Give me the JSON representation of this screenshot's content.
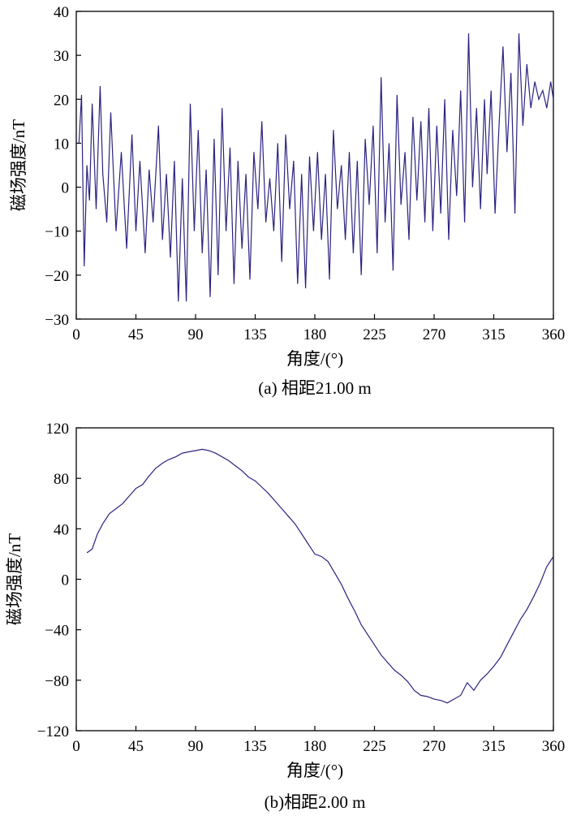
{
  "chart_data": [
    {
      "type": "line",
      "caption": "(a) 相距21.00 m",
      "xlabel": "角度/(°)",
      "ylabel": "磁场强度/nT",
      "xlim": [
        0,
        360
      ],
      "ylim": [
        -30,
        40
      ],
      "xticks": [
        0,
        45,
        90,
        135,
        180,
        225,
        270,
        315,
        360
      ],
      "yticks": [
        -30,
        -20,
        -10,
        0,
        10,
        20,
        30,
        40
      ],
      "grid": false,
      "color": "#2b2380",
      "series": [
        {
          "x": [
            2,
            4,
            5,
            6,
            8,
            10,
            12,
            15,
            18,
            20,
            23,
            26,
            30,
            34,
            38,
            42,
            45,
            48,
            52,
            55,
            58,
            62,
            65,
            68,
            71,
            74,
            77,
            80,
            83,
            86,
            89,
            92,
            95,
            98,
            101,
            104,
            107,
            110,
            113,
            116,
            119,
            122,
            125,
            128,
            131,
            134,
            137,
            140,
            143,
            146,
            149,
            152,
            155,
            158,
            161,
            164,
            167,
            170,
            173,
            176,
            179,
            182,
            185,
            188,
            191,
            194,
            197,
            200,
            203,
            206,
            209,
            212,
            215,
            218,
            221,
            224,
            227,
            230,
            233,
            236,
            239,
            242,
            245,
            248,
            251,
            254,
            257,
            260,
            263,
            266,
            269,
            272,
            275,
            278,
            281,
            284,
            287,
            290,
            293,
            296,
            299,
            302,
            305,
            308,
            310,
            313,
            316,
            319,
            322,
            325,
            328,
            331,
            334,
            337,
            340,
            343,
            346,
            349,
            352,
            355,
            358,
            360
          ],
          "y": [
            10,
            21,
            0,
            -18,
            5,
            -3,
            19,
            -5,
            23,
            3,
            -8,
            17,
            -10,
            8,
            -14,
            12,
            -10,
            6,
            -15,
            4,
            -8,
            14,
            -12,
            3,
            -16,
            6,
            -26,
            2,
            -26,
            19,
            -10,
            13,
            -15,
            4,
            -25,
            11,
            -20,
            18,
            -10,
            9,
            -22,
            6,
            -14,
            3,
            -21,
            8,
            -5,
            15,
            -8,
            2,
            -10,
            10,
            -17,
            12,
            -5,
            6,
            -22,
            3,
            -23,
            7,
            -10,
            8,
            -12,
            3,
            -21,
            13,
            -5,
            5,
            -12,
            8,
            -15,
            6,
            -20,
            11,
            -4,
            14,
            -15,
            25,
            -8,
            10,
            -19,
            21,
            -4,
            8,
            -12,
            16,
            -3,
            15,
            -8,
            18,
            -10,
            14,
            -6,
            20,
            -12,
            13,
            -2,
            22,
            -8,
            35,
            0,
            18,
            -5,
            20,
            3,
            22,
            -6,
            14,
            32,
            8,
            26,
            -6,
            35,
            14,
            28,
            18,
            24,
            20,
            22,
            18,
            24,
            20
          ]
        }
      ]
    },
    {
      "type": "line",
      "caption": "(b)相距2.00 m",
      "xlabel": "角度/(°)",
      "ylabel": "磁场强度/nT",
      "xlim": [
        0,
        360
      ],
      "ylim": [
        -120,
        120
      ],
      "xticks": [
        0,
        45,
        90,
        135,
        180,
        225,
        270,
        315,
        360
      ],
      "yticks": [
        -120,
        -80,
        -40,
        0,
        40,
        80,
        120
      ],
      "grid": false,
      "color": "#2b2380",
      "series": [
        {
          "x": [
            8,
            12,
            16,
            20,
            25,
            30,
            35,
            40,
            45,
            50,
            55,
            60,
            65,
            70,
            75,
            80,
            85,
            90,
            95,
            100,
            105,
            110,
            115,
            120,
            125,
            130,
            135,
            140,
            145,
            150,
            155,
            160,
            165,
            170,
            175,
            180,
            185,
            190,
            195,
            200,
            205,
            210,
            215,
            220,
            225,
            230,
            235,
            240,
            245,
            250,
            255,
            260,
            265,
            270,
            275,
            280,
            285,
            290,
            295,
            300,
            305,
            310,
            315,
            320,
            325,
            330,
            335,
            340,
            345,
            350,
            355,
            360
          ],
          "y": [
            21,
            24,
            36,
            44,
            52,
            56,
            60,
            66,
            72,
            75,
            82,
            88,
            92,
            95,
            97,
            100,
            101,
            102,
            103,
            102,
            100,
            97,
            94,
            90,
            86,
            81,
            78,
            73,
            68,
            62,
            56,
            50,
            44,
            36,
            28,
            20,
            18,
            14,
            5,
            -4,
            -15,
            -25,
            -36,
            -44,
            -52,
            -60,
            -66,
            -72,
            -76,
            -81,
            -88,
            -92,
            -93,
            -95,
            -96,
            -98,
            -95,
            -92,
            -82,
            -88,
            -80,
            -75,
            -69,
            -62,
            -52,
            -42,
            -32,
            -24,
            -14,
            -3,
            10,
            18
          ]
        }
      ]
    }
  ]
}
